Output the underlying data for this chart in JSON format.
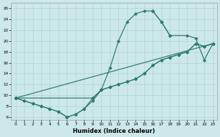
{
  "xlabel": "Humidex (Indice chaleur)",
  "bg_color": "#cce8e8",
  "line_color": "#2e7b6e",
  "xlim": [
    -0.5,
    23.5
  ],
  "ylim": [
    5.5,
    27
  ],
  "xticks": [
    0,
    1,
    2,
    3,
    4,
    5,
    6,
    7,
    8,
    9,
    10,
    11,
    12,
    13,
    14,
    15,
    16,
    17,
    18,
    19,
    20,
    21,
    22,
    23
  ],
  "yticks": [
    6,
    8,
    10,
    12,
    14,
    16,
    18,
    20,
    22,
    24,
    26
  ],
  "grid_color": "#aacfcf",
  "marker_size": 2.5,
  "lw": 0.9,
  "line1_x": [
    0,
    1,
    2,
    3,
    4,
    5,
    6,
    7,
    8,
    9,
    10,
    11,
    12,
    13,
    14,
    15,
    16,
    17,
    18
  ],
  "line1_y": [
    9.5,
    9.0,
    8.5,
    8.0,
    7.5,
    7.0,
    6.0,
    6.5,
    7.5,
    9.0,
    11.0,
    15.0,
    20.0,
    23.5,
    25.0,
    25.5,
    25.5,
    23.5,
    21.0
  ],
  "line2_x": [
    0,
    1,
    2,
    3,
    4,
    5,
    6,
    7,
    8,
    9,
    10,
    11,
    12,
    13,
    14,
    15,
    16,
    17,
    18,
    19,
    20,
    21,
    22,
    23
  ],
  "line2_y": [
    9.5,
    9.0,
    8.5,
    8.0,
    7.5,
    7.0,
    6.0,
    6.5,
    7.5,
    9.5,
    11.0,
    11.5,
    12.0,
    12.5,
    13.0,
    14.0,
    15.5,
    16.5,
    17.0,
    17.5,
    18.0,
    19.5,
    19.0,
    19.5
  ],
  "line3_x": [
    0,
    9,
    10,
    11,
    12,
    13,
    14,
    15,
    16,
    17,
    18,
    19,
    20,
    21,
    22,
    23
  ],
  "line3_y": [
    9.5,
    9.5,
    11.0,
    11.5,
    12.0,
    12.5,
    13.0,
    14.0,
    15.5,
    16.5,
    17.0,
    17.5,
    18.0,
    19.5,
    19.0,
    19.5
  ],
  "line4_x": [
    0,
    23
  ],
  "line4_y": [
    9.5,
    19.5
  ],
  "line5_x": [
    16,
    17,
    18,
    20,
    21,
    22,
    23
  ],
  "line5_y": [
    25.5,
    23.5,
    21.0,
    21.0,
    20.5,
    16.5,
    19.5
  ]
}
